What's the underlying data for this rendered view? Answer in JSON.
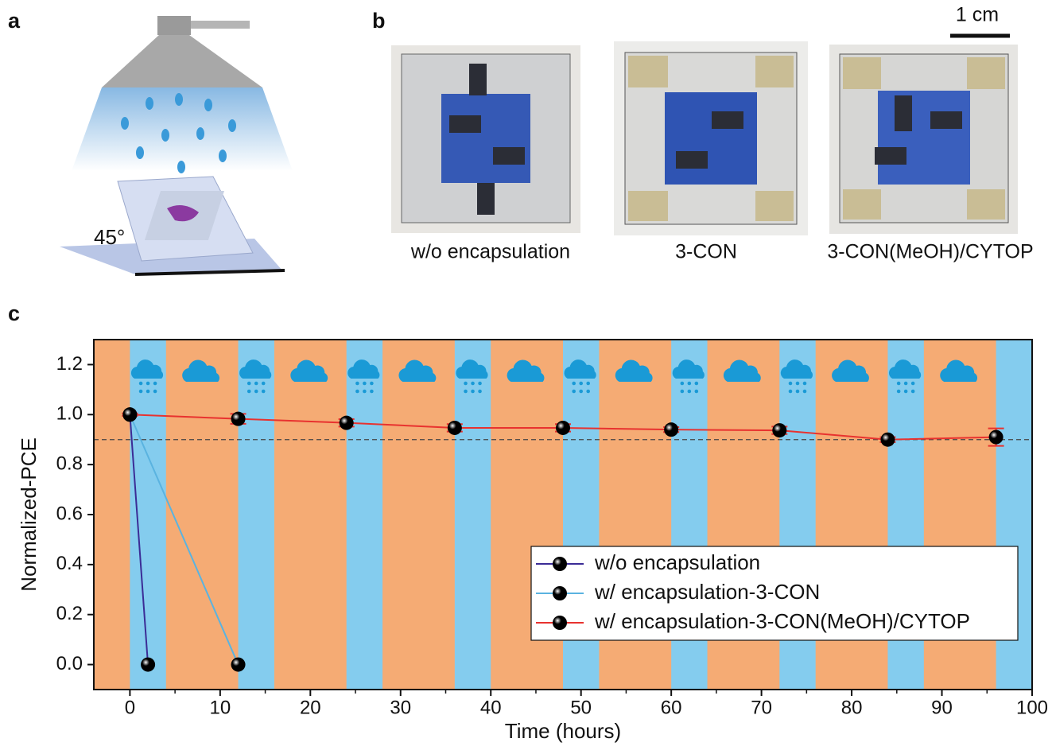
{
  "figure": {
    "panel_labels": [
      "a",
      "b",
      "c"
    ],
    "angle_label": "45°",
    "scale_bar": "1 cm",
    "photo_captions": [
      "w/o encapsulation",
      "3-CON",
      "3-CON(MeOH)/CYTOP"
    ]
  },
  "chart_data": {
    "type": "line",
    "x_label": "Time (hours)",
    "y_label": "Normalized-PCE",
    "xlim": [
      -4,
      100
    ],
    "xticks": [
      0,
      10,
      20,
      30,
      40,
      50,
      60,
      70,
      80,
      90,
      100
    ],
    "ylim": [
      -0.1,
      1.3
    ],
    "yticks": [
      {
        "value": 0,
        "label": "0.0"
      },
      0.2,
      0.4,
      0.6,
      0.8,
      {
        "value": 1,
        "label": "1.0"
      },
      1.2
    ],
    "reference_line": 0.9,
    "shaded_intervals": [
      [
        0,
        4
      ],
      [
        12,
        16
      ],
      [
        24,
        28
      ],
      [
        36,
        40
      ],
      [
        48,
        52
      ],
      [
        60,
        64
      ],
      [
        72,
        76
      ],
      [
        84,
        88
      ],
      [
        96,
        100
      ]
    ],
    "shade_color": "#84ccee",
    "background_color": "#f5ab74",
    "legend": "center right",
    "series": [
      {
        "name": "w/o encapsulation",
        "color": "#3b2c96",
        "x": [
          0,
          2
        ],
        "values": [
          1.0,
          0.0
        ]
      },
      {
        "name": "w/ encapsulation-3-CON",
        "color": "#5ab3e0",
        "x": [
          0,
          12
        ],
        "values": [
          1.0,
          0.0
        ]
      },
      {
        "name": "w/ encapsulation-3-CON(MeOH)/CYTOP",
        "color": "#e8322f",
        "x": [
          0,
          12,
          24,
          36,
          48,
          60,
          72,
          84,
          96
        ],
        "values": [
          1.0,
          0.983,
          0.967,
          0.947,
          0.947,
          0.94,
          0.937,
          0.9,
          0.91
        ],
        "errors": [
          0.005,
          0.02,
          0.015,
          0.015,
          0.015,
          0.01,
          0.015,
          0.01,
          0.035
        ]
      }
    ]
  }
}
